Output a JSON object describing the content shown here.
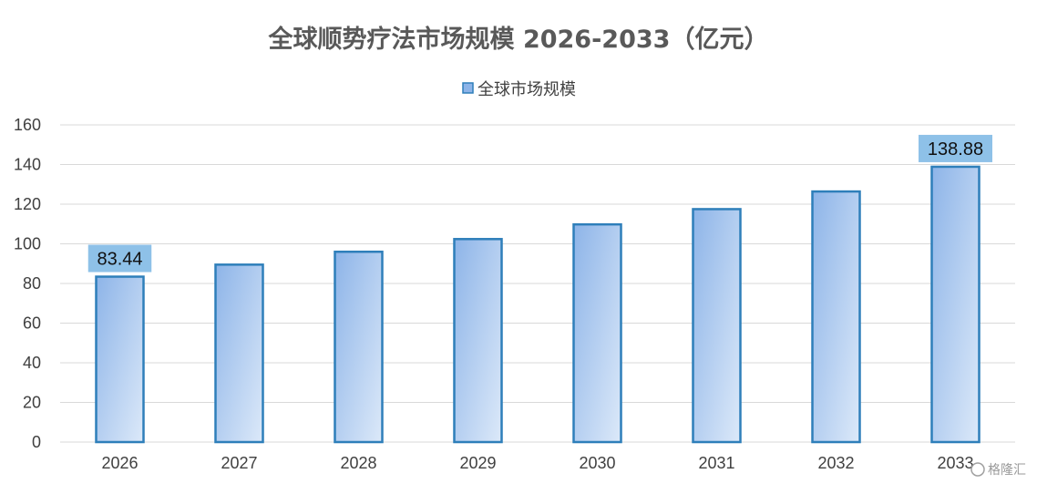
{
  "chart_data": {
    "type": "bar",
    "title": "全球顺势疗法市场规模 2026-2033（亿元）",
    "categories": [
      "2026",
      "2027",
      "2028",
      "2029",
      "2030",
      "2031",
      "2032",
      "2033"
    ],
    "series": [
      {
        "name": "全球市场规模",
        "values": [
          83.44,
          89.5,
          96.0,
          102.4,
          109.8,
          117.5,
          126.4,
          138.88
        ]
      }
    ],
    "data_labels": [
      {
        "index": 0,
        "text": "83.44"
      },
      {
        "index": 7,
        "text": "138.88"
      }
    ],
    "ylim": [
      0,
      160
    ],
    "yticks": [
      0,
      20,
      40,
      60,
      80,
      100,
      120,
      140,
      160
    ],
    "xlabel": "",
    "ylabel": "",
    "grid": true,
    "legend_position": "top-center",
    "colors": {
      "bar_fill_dark": "#8db4e8",
      "bar_fill_light": "#dce9f9",
      "bar_stroke": "#2e7fba",
      "label_background": "#8ec1e8",
      "gridline": "#d9d9d9"
    }
  },
  "watermark": {
    "text": "格隆汇"
  }
}
